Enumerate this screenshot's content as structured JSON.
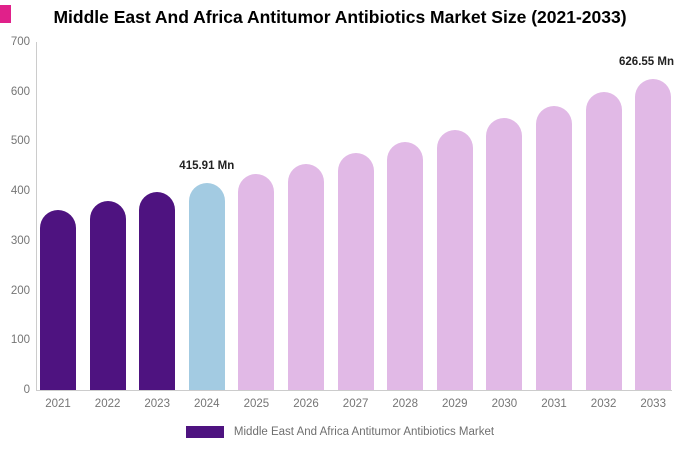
{
  "header": {
    "title": "Middle East And Africa Antitumor Antibiotics Market Size (2021-2033)"
  },
  "chart_data": {
    "type": "bar",
    "title": "Middle East And Africa Antitumor Antibiotics Market Size (2021-2033)",
    "categories": [
      "2021",
      "2022",
      "2023",
      "2024",
      "2025",
      "2026",
      "2027",
      "2028",
      "2029",
      "2030",
      "2031",
      "2032",
      "2033"
    ],
    "values": [
      362.8,
      379.7,
      397.4,
      415.91,
      435.3,
      455.6,
      476.8,
      499.0,
      522.3,
      546.6,
      572.1,
      598.7,
      626.55
    ],
    "unit": "Mn",
    "ylim": [
      0,
      700
    ],
    "yticks": [
      0,
      100,
      200,
      300,
      400,
      500,
      600,
      700
    ],
    "grid": false,
    "legend_position": "bottom",
    "series_colors": {
      "historical": "#4e1380",
      "current_year": "#a3cbe2",
      "forecast": "#e1b9e6"
    },
    "bar_color_keys": [
      "historical",
      "historical",
      "historical",
      "current_year",
      "forecast",
      "forecast",
      "forecast",
      "forecast",
      "forecast",
      "forecast",
      "forecast",
      "forecast",
      "forecast"
    ],
    "data_labels": [
      {
        "index": 3,
        "text": "415.91 Mn"
      },
      {
        "index": 12,
        "text": "626.55 Mn"
      }
    ]
  },
  "legend": {
    "label": "Middle East And Africa Antitumor Antibiotics Market",
    "swatch_color_key": "historical"
  },
  "colors": {
    "accent_corner": "#e0218a",
    "axis_line": "#cccccc",
    "tick_text": "#757575",
    "data_label_text": "#222222",
    "legend_text": "#6f6f6f",
    "title_text": "#000000"
  }
}
